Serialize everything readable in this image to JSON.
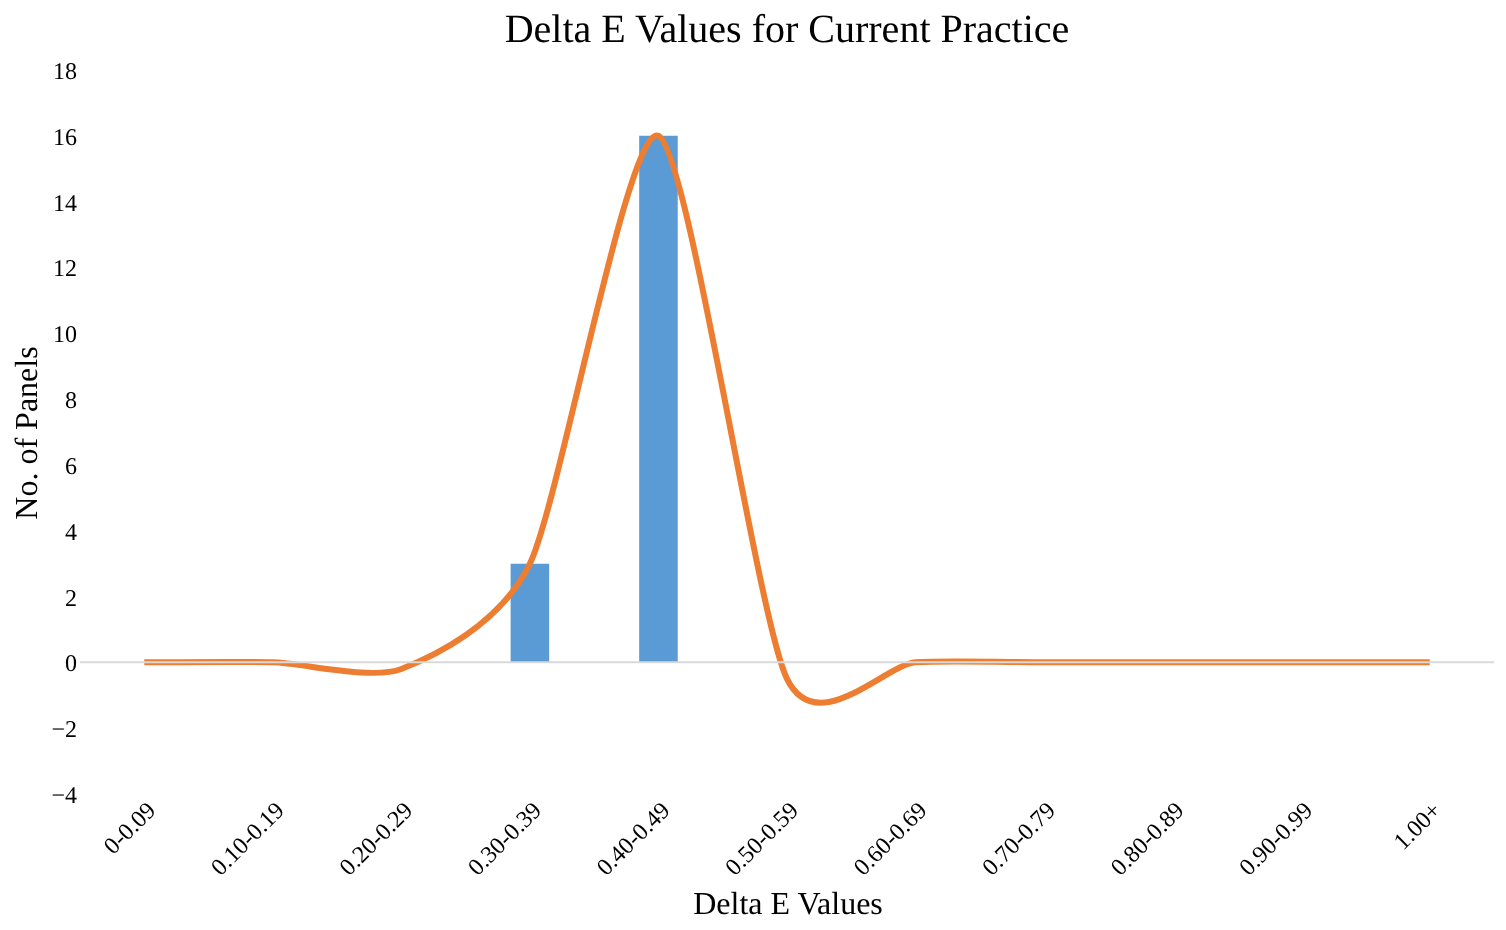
{
  "chart_data": {
    "type": "bar",
    "title": "Delta E Values for Current Practice",
    "xlabel": "Delta E Values",
    "ylabel": "No. of Panels",
    "categories": [
      "0-0.09",
      "0.10-0.19",
      "0.20-0.29",
      "0.30-0.39",
      "0.40-0.49",
      "0.50-0.59",
      "0.60-0.69",
      "0.70-0.79",
      "0.80-0.89",
      "0.90-0.99",
      "1.00+"
    ],
    "series": [
      {
        "color": "#5b9bd5",
        "values": [
          0,
          0,
          0,
          3,
          16,
          0,
          0,
          0,
          0,
          0,
          0
        ]
      },
      {
        "type": "line",
        "color": "#ed7d31",
        "values": [
          0,
          0,
          -0.2,
          3,
          16,
          -0.5,
          0,
          0,
          0,
          0,
          0
        ]
      }
    ],
    "ylim": [
      -4,
      18
    ],
    "yticks": [
      -4,
      -2,
      0,
      2,
      4,
      6,
      8,
      10,
      12,
      14,
      16,
      18
    ],
    "grid": false,
    "ref_lines": [
      {
        "axis": "y",
        "value": 0,
        "color": "#d9d9d9"
      }
    ]
  }
}
